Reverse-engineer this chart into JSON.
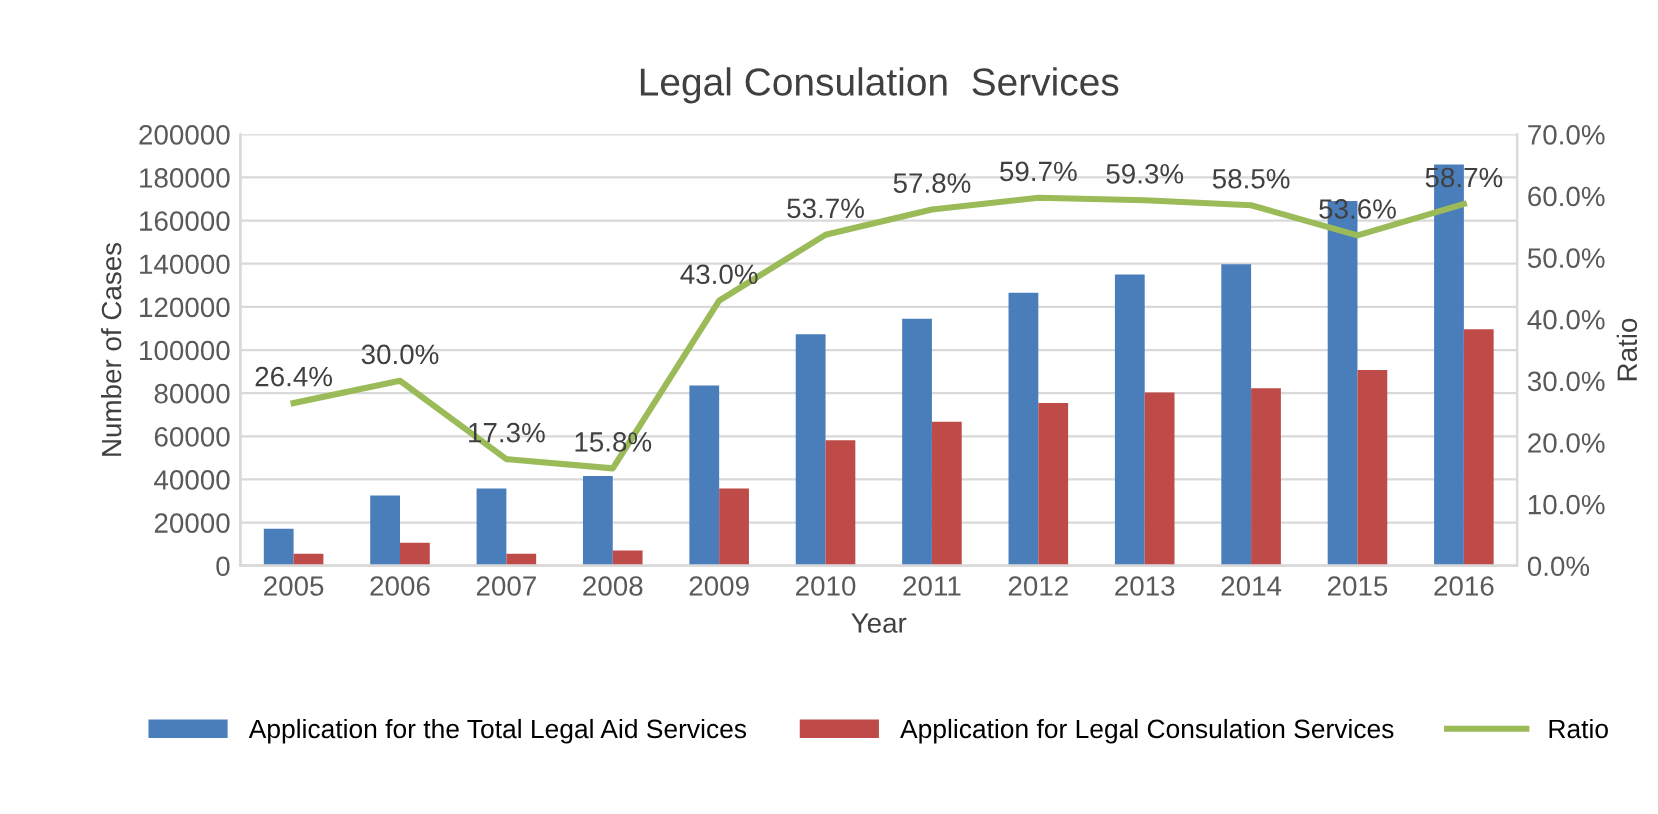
{
  "chart_data": {
    "type": "bar",
    "title": "Legal Consulation  Services",
    "xlabel": "Year",
    "ylabel": "Number of Cases",
    "y2label": "Ratio",
    "categories": [
      "2005",
      "2006",
      "2007",
      "2008",
      "2009",
      "2010",
      "2011",
      "2012",
      "2013",
      "2014",
      "2015",
      "2016"
    ],
    "series": [
      {
        "name": "Application for the Total Legal Aid Services",
        "color": "#4a7ebb",
        "values": [
          17200,
          32500,
          35800,
          41600,
          83600,
          107300,
          114500,
          126500,
          135000,
          139800,
          169100,
          186000
        ]
      },
      {
        "name": "Application for Legal Consulation Services",
        "color": "#be4b48",
        "values": [
          5500,
          10700,
          5500,
          7100,
          35800,
          58200,
          66700,
          75400,
          80300,
          82300,
          90700,
          109600
        ]
      },
      {
        "name": "Ratio",
        "type": "line",
        "axis": "y2",
        "color": "#9bbb59",
        "values": [
          26.4,
          30.0,
          17.3,
          15.8,
          43.0,
          53.7,
          57.8,
          59.7,
          59.3,
          58.5,
          53.6,
          58.7
        ],
        "value_labels": [
          "26.4%",
          "30.0%",
          "17.3%",
          "15.8%",
          "43.0%",
          "53.7%",
          "57.8%",
          "59.7%",
          "59.3%",
          "58.5%",
          "53.6%",
          "58.7%"
        ]
      }
    ],
    "ylim": [
      0,
      200000
    ],
    "yticks": [
      0,
      20000,
      40000,
      60000,
      80000,
      100000,
      120000,
      140000,
      160000,
      180000,
      200000
    ],
    "y2lim": [
      0,
      70
    ],
    "y2ticks": [
      {
        "value": 0,
        "label": "0.0%"
      },
      {
        "value": 10,
        "label": "10.0%"
      },
      {
        "value": 20,
        "label": "20.0%"
      },
      {
        "value": 30,
        "label": "30.0%"
      },
      {
        "value": 40,
        "label": "40.0%"
      },
      {
        "value": 50,
        "label": "50.0%"
      },
      {
        "value": 60,
        "label": "60.0%"
      },
      {
        "value": 70,
        "label": "70.0%"
      }
    ],
    "grid": "y",
    "legend": "bottom",
    "marker": "none",
    "line_style": "solid"
  }
}
